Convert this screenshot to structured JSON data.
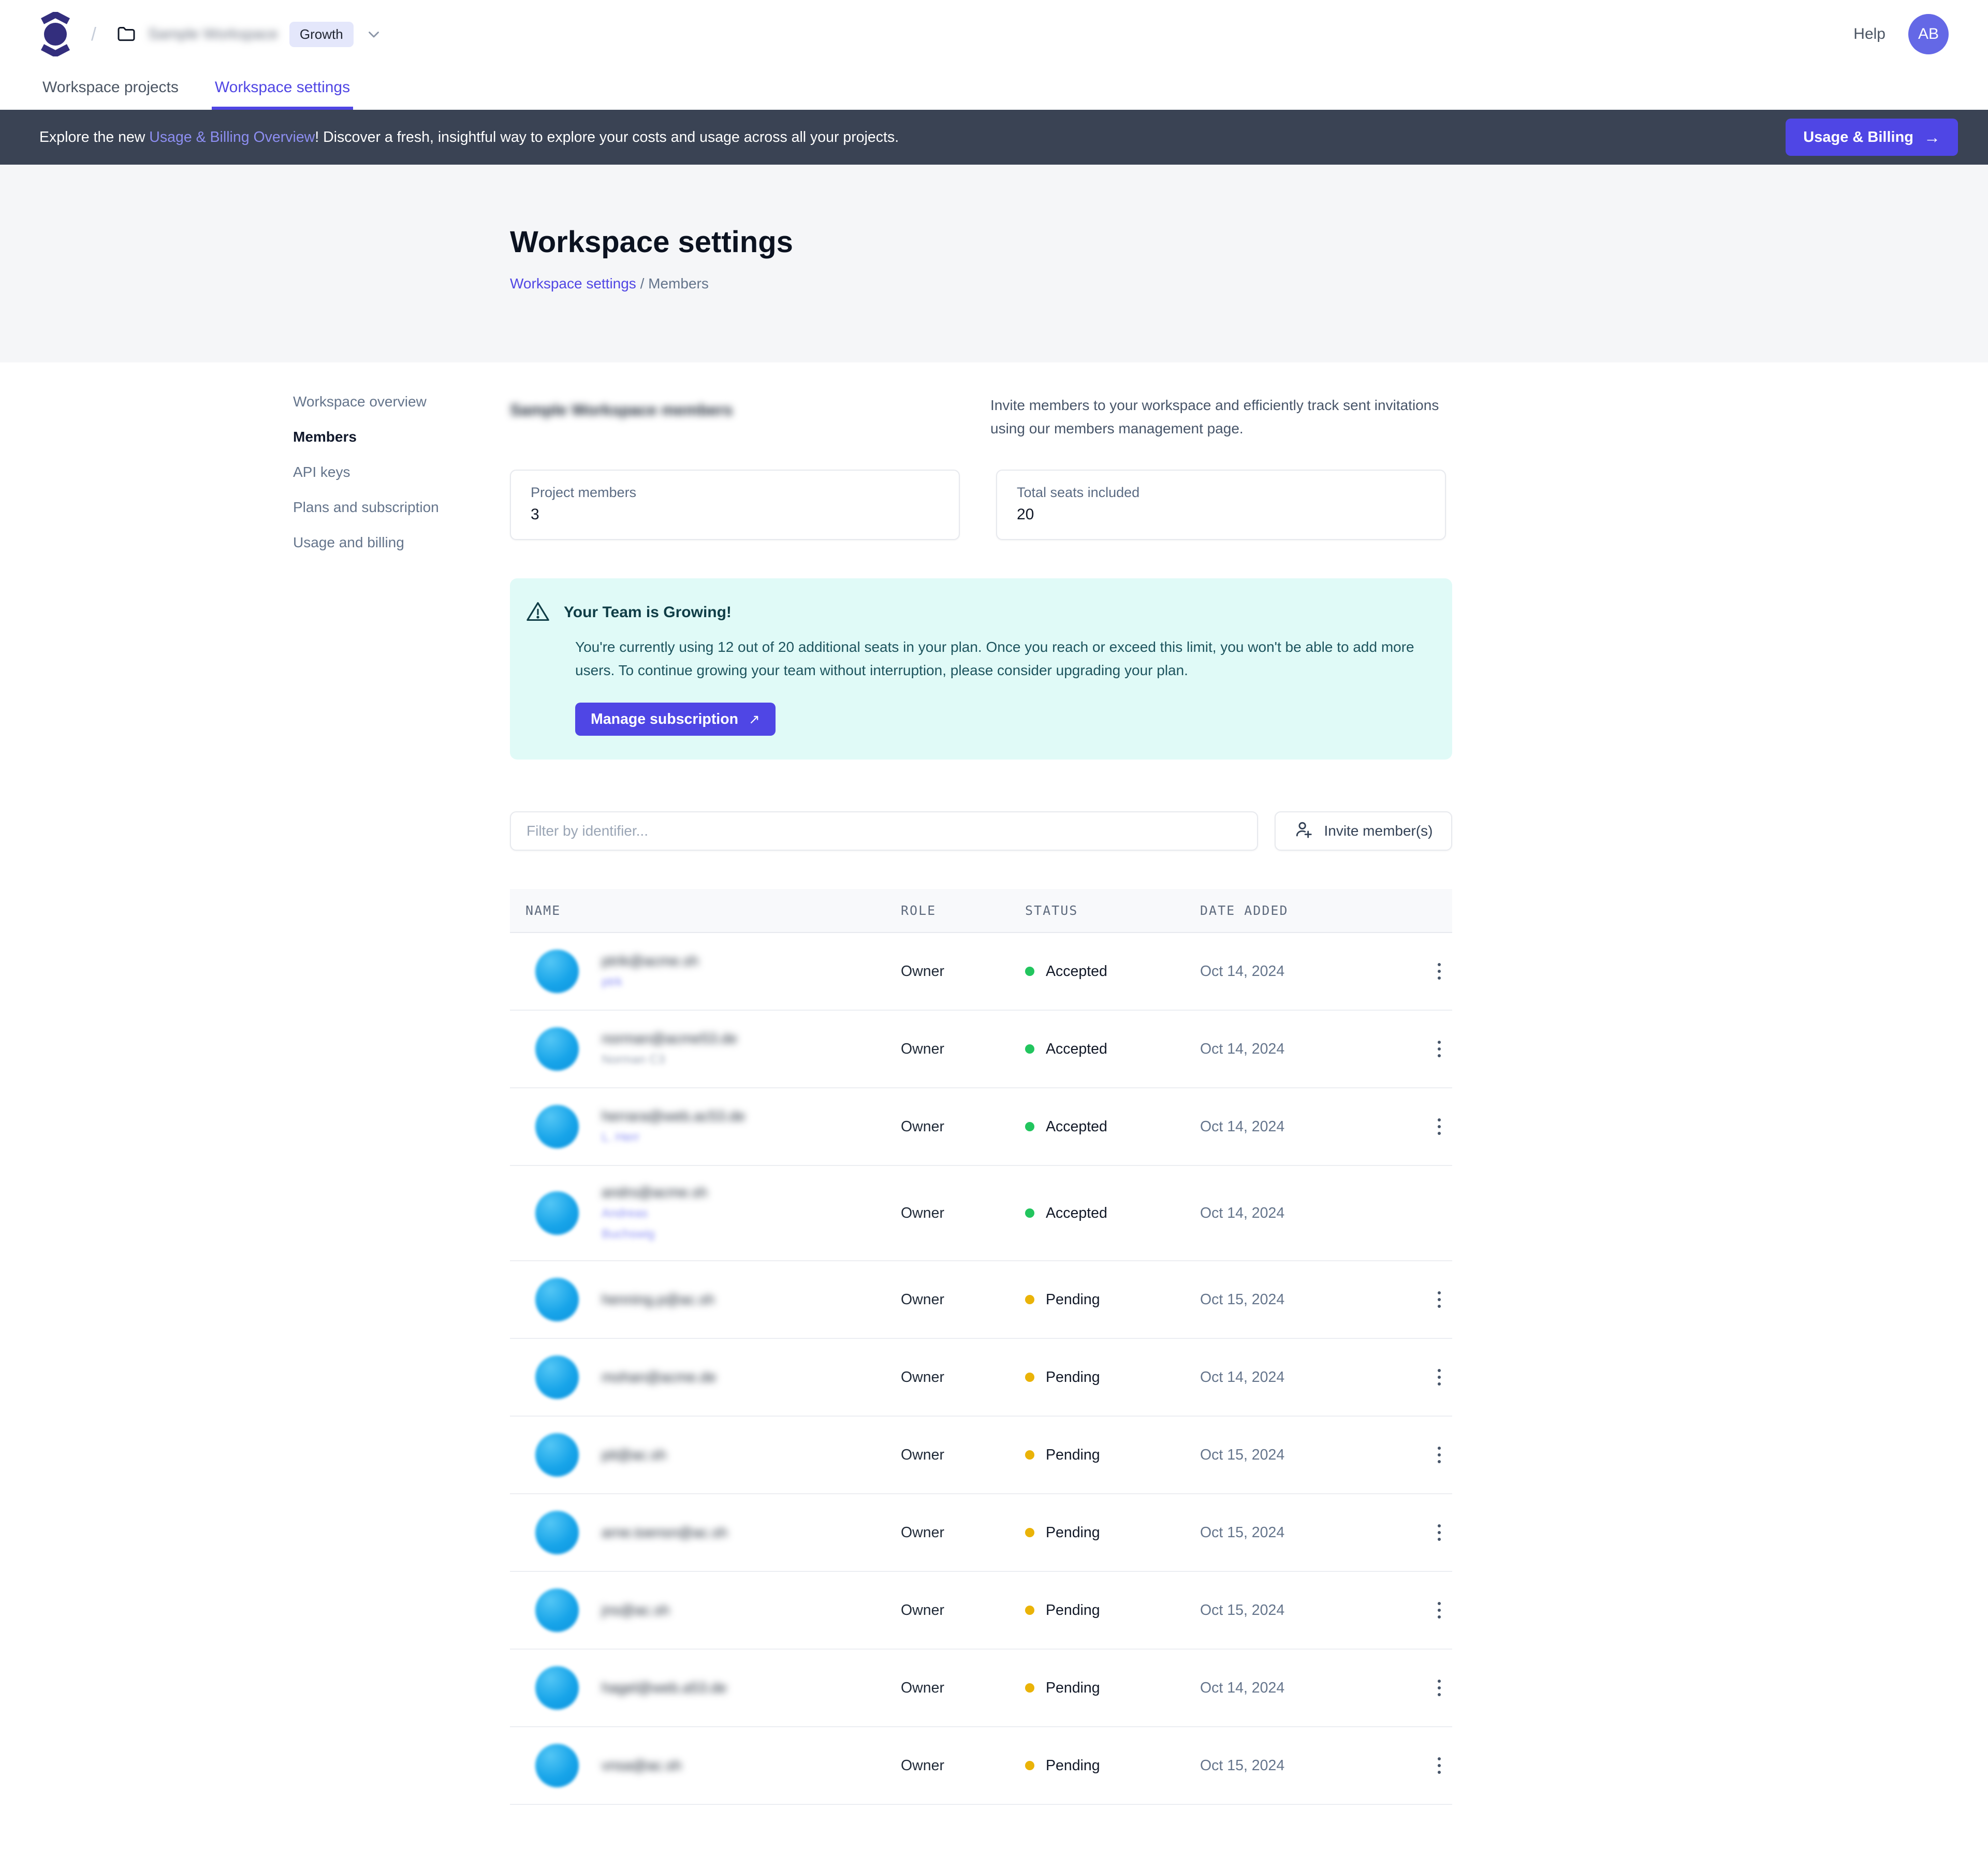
{
  "nav": {
    "breadcrumb_separator": "/",
    "workspace_name_redacted": "Sample Workspace",
    "plan_badge": "Growth",
    "help_label": "Help",
    "avatar_initials": "AB"
  },
  "tabs": [
    {
      "label": "Workspace projects",
      "active": false
    },
    {
      "label": "Workspace settings",
      "active": true
    }
  ],
  "banner": {
    "text_prefix": "Explore the new ",
    "link_text": "Usage & Billing Overview",
    "text_suffix": "! Discover a fresh, insightful way to explore your costs and usage across all your projects.",
    "button_label": "Usage & Billing",
    "button_arrow": "→"
  },
  "header": {
    "title": "Workspace settings",
    "breadcrumb_link": "Workspace settings",
    "breadcrumb_separator": " / ",
    "breadcrumb_current": "Members"
  },
  "sidebar": {
    "items": [
      {
        "label": "Workspace overview",
        "active": false
      },
      {
        "label": "Members",
        "active": true
      },
      {
        "label": "API keys",
        "active": false
      },
      {
        "label": "Plans and subscription",
        "active": false
      },
      {
        "label": "Usage and billing",
        "active": false
      }
    ]
  },
  "members_section": {
    "heading_redacted": "Sample Workspace members",
    "description": "Invite members to your workspace and efficiently track sent invitations using our members management page."
  },
  "cards": [
    {
      "label": "Project members",
      "value": "3"
    },
    {
      "label": "Total seats included",
      "value": "20"
    }
  ],
  "alert": {
    "title": "Your Team is Growing!",
    "body": "You're currently using 12 out of 20 additional seats in your plan. Once you reach or exceed this limit, you won't be able to add more users. To continue growing your team without interruption, please consider upgrading your plan.",
    "button_label": "Manage subscription",
    "button_external_arrow": "↗"
  },
  "toolbar": {
    "filter_placeholder": "Filter by identifier...",
    "invite_button_label": "Invite member(s)"
  },
  "table": {
    "columns": [
      "NAME",
      "ROLE",
      "STATUS",
      "DATE ADDED"
    ],
    "rows": [
      {
        "email_redacted": "ptrik@acme.sh",
        "secondary_redacted": [
          "ptrk"
        ],
        "secondary_style": "link",
        "role": "Owner",
        "status": "Accepted",
        "date_added": "Oct 14, 2024",
        "has_menu": true
      },
      {
        "email_redacted": "norman@acme53.de",
        "secondary_redacted": [
          "Norman C3"
        ],
        "secondary_style": "muted",
        "role": "Owner",
        "status": "Accepted",
        "date_added": "Oct 14, 2024",
        "has_menu": true
      },
      {
        "email_redacted": "herrara@web.ac53.de",
        "secondary_redacted": [
          "L. Herr"
        ],
        "secondary_style": "link",
        "role": "Owner",
        "status": "Accepted",
        "date_added": "Oct 14, 2024",
        "has_menu": true
      },
      {
        "email_redacted": "andrs@acme.sh",
        "secondary_redacted": [
          "Andreas",
          "Buchswig"
        ],
        "secondary_style": "link",
        "role": "Owner",
        "status": "Accepted",
        "date_added": "Oct 14, 2024",
        "has_menu": false
      },
      {
        "email_redacted": "henning.p@ac.sh",
        "secondary_redacted": [],
        "secondary_style": "",
        "role": "Owner",
        "status": "Pending",
        "date_added": "Oct 15, 2024",
        "has_menu": true
      },
      {
        "email_redacted": "mohan@acme.de",
        "secondary_redacted": [],
        "secondary_style": "",
        "role": "Owner",
        "status": "Pending",
        "date_added": "Oct 14, 2024",
        "has_menu": true
      },
      {
        "email_redacted": "pit@ac.sh",
        "secondary_redacted": [],
        "secondary_style": "",
        "role": "Owner",
        "status": "Pending",
        "date_added": "Oct 15, 2024",
        "has_menu": true
      },
      {
        "email_redacted": "arne.toensn@ac.sh",
        "secondary_redacted": [],
        "secondary_style": "",
        "role": "Owner",
        "status": "Pending",
        "date_added": "Oct 15, 2024",
        "has_menu": true
      },
      {
        "email_redacted": "jns@ac.sh",
        "secondary_redacted": [],
        "secondary_style": "",
        "role": "Owner",
        "status": "Pending",
        "date_added": "Oct 15, 2024",
        "has_menu": true
      },
      {
        "email_redacted": "hagel@web.a53.de",
        "secondary_redacted": [],
        "secondary_style": "",
        "role": "Owner",
        "status": "Pending",
        "date_added": "Oct 14, 2024",
        "has_menu": true
      },
      {
        "email_redacted": "vnsa@ac.sh",
        "secondary_redacted": [],
        "secondary_style": "",
        "role": "Owner",
        "status": "Pending",
        "date_added": "Oct 15, 2024",
        "has_menu": true
      }
    ]
  },
  "icons": {
    "logo": "brand-mark-circle-with-chevrons",
    "folder": "folder-outline",
    "chevron_down": "chevron-down",
    "warning": "warning-triangle",
    "invite": "person-plus",
    "kebab": "vertical-three-dots",
    "arrow_right": "→",
    "external_arrow": "↗"
  },
  "colors": {
    "accent": "#4f46e5",
    "active_tab": "#5046e4",
    "banner_bg": "#3a4354",
    "page_header_bg": "#f5f6f8",
    "alert_bg": "#e0faf7",
    "alert_text": "#0f3d46",
    "status_accepted": "#22c55e",
    "status_pending": "#eab308",
    "avatar_blue": "#17a4e9",
    "logo_indigo": "#332e7d"
  }
}
